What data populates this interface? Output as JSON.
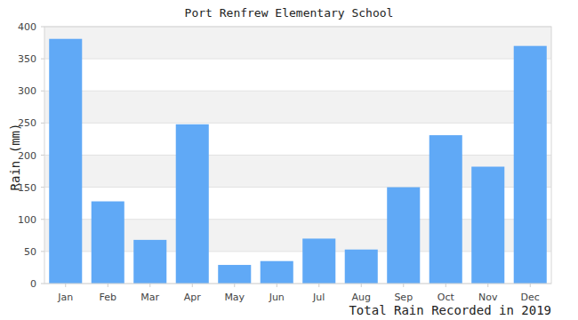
{
  "chart_data": {
    "type": "bar",
    "title": "Port Renfrew Elementary School",
    "ylabel": "Rain (mm)",
    "xlabel": "Total Rain Recorded in 2019",
    "categories": [
      "Jan",
      "Feb",
      "Mar",
      "Apr",
      "May",
      "Jun",
      "Jul",
      "Aug",
      "Sep",
      "Oct",
      "Nov",
      "Dec"
    ],
    "values": [
      381,
      128,
      68,
      248,
      29,
      35,
      70,
      53,
      150,
      231,
      182,
      370
    ],
    "color": "#60a9f6",
    "ylim": [
      0,
      400
    ],
    "yticks": [
      0,
      50,
      100,
      150,
      200,
      250,
      300,
      350,
      400
    ],
    "grid": true
  }
}
